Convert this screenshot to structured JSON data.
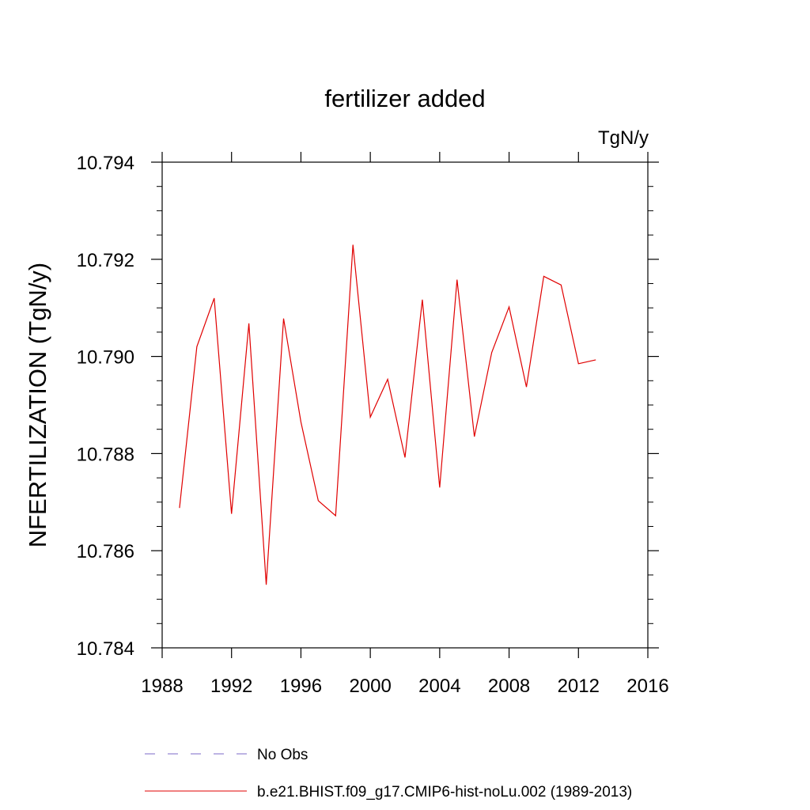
{
  "chart_data": {
    "type": "line",
    "title": "fertilizer added",
    "units": "TgN/y",
    "ylabel": "NFERTILIZATION  (TgN/y)",
    "xlabel": "",
    "xlim": [
      1988,
      2016
    ],
    "ylim": [
      10.784,
      10.794
    ],
    "x_major_ticks": [
      "1988",
      "1992",
      "1996",
      "2000",
      "2004",
      "2008",
      "2012",
      "2016"
    ],
    "y_major_ticks": [
      "10.784",
      "10.786",
      "10.788",
      "10.790",
      "10.792",
      "10.794"
    ],
    "grid": false,
    "legend_position": "bottom",
    "x": [
      1989,
      1990,
      1991,
      1992,
      1993,
      1994,
      1995,
      1996,
      1997,
      1998,
      1999,
      2000,
      2001,
      2002,
      2003,
      2004,
      2005,
      2006,
      2007,
      2008,
      2009,
      2010,
      2011,
      2012,
      2013
    ],
    "series": [
      {
        "name": "b.e21.BHIST.f09_g17.CMIP6-hist-noLu.002 (1989-2013)",
        "color": "#e00000",
        "style": "solid",
        "values": [
          10.78688,
          10.7902,
          10.7912,
          10.78676,
          10.79068,
          10.7853,
          10.79078,
          10.78865,
          10.78703,
          10.78672,
          10.7923,
          10.78875,
          10.78953,
          10.78792,
          10.79117,
          10.7873,
          10.79158,
          10.78835,
          10.79008,
          10.79102,
          10.78937,
          10.79165,
          10.79147,
          10.78985,
          10.78993
        ]
      }
    ],
    "legend": [
      {
        "label": "No Obs",
        "color": "#7b68c8",
        "style": "dashed"
      },
      {
        "label": "b.e21.BHIST.f09_g17.CMIP6-hist-noLu.002 (1989-2013)",
        "color": "#e00000",
        "style": "solid"
      }
    ]
  }
}
